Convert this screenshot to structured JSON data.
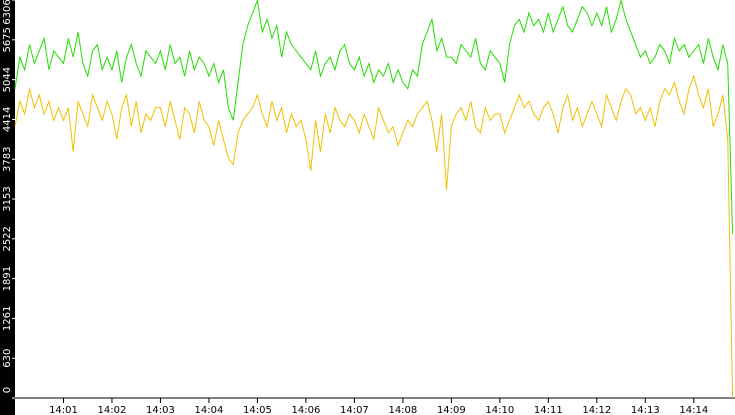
{
  "chart_data": {
    "type": "line",
    "x": [
      0,
      0.1,
      0.2,
      0.3,
      0.4,
      0.5,
      0.6,
      0.7,
      0.8,
      0.9,
      1,
      1.1,
      1.2,
      1.3,
      1.4,
      1.5,
      1.6,
      1.7,
      1.8,
      1.9,
      2,
      2.1,
      2.2,
      2.3,
      2.4,
      2.5,
      2.6,
      2.7,
      2.8,
      2.9,
      3,
      3.1,
      3.2,
      3.3,
      3.4,
      3.5,
      3.6,
      3.7,
      3.8,
      3.9,
      4,
      4.1,
      4.2,
      4.3,
      4.4,
      4.5,
      4.6,
      4.7,
      4.8,
      4.9,
      5,
      5.1,
      5.2,
      5.3,
      5.4,
      5.5,
      5.6,
      5.7,
      5.8,
      5.9,
      6,
      6.1,
      6.2,
      6.3,
      6.4,
      6.5,
      6.6,
      6.7,
      6.8,
      6.9,
      7,
      7.1,
      7.2,
      7.3,
      7.4,
      7.5,
      7.6,
      7.7,
      7.8,
      7.9,
      8,
      8.1,
      8.2,
      8.3,
      8.4,
      8.5,
      8.6,
      8.7,
      8.8,
      8.9,
      9,
      9.1,
      9.2,
      9.3,
      9.4,
      9.5,
      9.6,
      9.7,
      9.8,
      9.9,
      10,
      10.1,
      10.2,
      10.3,
      10.4,
      10.5,
      10.6,
      10.7,
      10.8,
      10.9,
      11,
      11.1,
      11.2,
      11.3,
      11.4,
      11.5,
      11.6,
      11.7,
      11.8,
      11.9,
      12,
      12.1,
      12.2,
      12.3,
      12.4,
      12.5,
      12.6,
      12.7,
      12.8,
      12.9,
      13,
      13.1,
      13.2,
      13.3,
      13.4,
      13.5,
      13.6,
      13.7,
      13.8,
      13.9,
      14,
      14.1,
      14.2,
      14.3,
      14.4,
      14.5,
      14.6,
      14.7,
      14.8
    ],
    "series": [
      {
        "color": "#22dd00",
        "values": [
          4900,
          5400,
          5200,
          5600,
          5300,
          5500,
          5700,
          5200,
          5500,
          5400,
          5300,
          5700,
          5400,
          5800,
          5300,
          5100,
          5500,
          5600,
          5200,
          5400,
          5200,
          5500,
          5000,
          5400,
          5600,
          5300,
          5100,
          5500,
          5400,
          5300,
          5500,
          5200,
          5600,
          5300,
          5400,
          5100,
          5500,
          5200,
          5400,
          5300,
          5100,
          5300,
          5000,
          5200,
          4600,
          4400,
          5000,
          5600,
          5900,
          6100,
          6300,
          5800,
          6000,
          5700,
          5900,
          5400,
          5800,
          5600,
          5500,
          5400,
          5300,
          5200,
          5500,
          5100,
          5300,
          5400,
          5200,
          5500,
          5600,
          5300,
          5200,
          5400,
          5100,
          5300,
          5000,
          5200,
          5100,
          5300,
          5000,
          5200,
          5000,
          4900,
          5200,
          5100,
          5600,
          5800,
          6000,
          5500,
          5700,
          5400,
          5400,
          5300,
          5600,
          5500,
          5400,
          5700,
          5300,
          5200,
          5500,
          5400,
          5300,
          5000,
          5600,
          5900,
          6000,
          5800,
          6100,
          5900,
          6000,
          5800,
          6100,
          5800,
          6000,
          6200,
          5900,
          5800,
          6000,
          6200,
          6100,
          5900,
          6100,
          5900,
          6200,
          5800,
          6000,
          6300,
          6000,
          5800,
          5600,
          5400,
          5500,
          5300,
          5400,
          5600,
          5500,
          5300,
          5700,
          5500,
          5600,
          5400,
          5500,
          5600,
          5300,
          5700,
          5400,
          5200,
          5600,
          5300,
          2600
        ]
      },
      {
        "color": "#f0c000",
        "values": [
          4300,
          4700,
          4500,
          4900,
          4600,
          4800,
          4500,
          4700,
          4400,
          4600,
          4400,
          4600,
          3900,
          4700,
          4500,
          4300,
          4800,
          4600,
          4400,
          4700,
          4500,
          4100,
          4600,
          4800,
          4300,
          4700,
          4200,
          4500,
          4400,
          4600,
          4600,
          4300,
          4700,
          4400,
          4100,
          4600,
          4500,
          4200,
          4700,
          4400,
          4300,
          4000,
          4400,
          4100,
          3800,
          3700,
          4200,
          4400,
          4500,
          4600,
          4800,
          4500,
          4300,
          4700,
          4400,
          4600,
          4200,
          4500,
          4300,
          4400,
          4100,
          3600,
          4400,
          3900,
          4500,
          4200,
          4600,
          4400,
          4300,
          4500,
          4400,
          4200,
          4500,
          4300,
          4100,
          4600,
          4400,
          4200,
          4300,
          4000,
          4200,
          4400,
          4300,
          4500,
          4600,
          4700,
          4400,
          3900,
          4500,
          3300,
          4300,
          4500,
          4600,
          4400,
          4700,
          4300,
          4200,
          4600,
          4400,
          4500,
          4500,
          4200,
          4400,
          4600,
          4800,
          4600,
          4700,
          4500,
          4400,
          4600,
          4700,
          4500,
          4200,
          4600,
          4800,
          4400,
          4600,
          4300,
          4500,
          4700,
          4500,
          4300,
          4800,
          4600,
          4400,
          4700,
          4900,
          4800,
          4500,
          4600,
          4400,
          4600,
          4300,
          4700,
          4900,
          4800,
          5000,
          4700,
          4500,
          4900,
          5100,
          4800,
          4600,
          4900,
          4300,
          4500,
          4800,
          4100,
          0
        ]
      }
    ],
    "xlim": [
      0,
      14.85
    ],
    "xticks": [
      {
        "value": 1,
        "label": "14:01"
      },
      {
        "value": 2,
        "label": "14:02"
      },
      {
        "value": 3,
        "label": "14:03"
      },
      {
        "value": 4,
        "label": "14:04"
      },
      {
        "value": 5,
        "label": "14:05"
      },
      {
        "value": 6,
        "label": "14:06"
      },
      {
        "value": 7,
        "label": "14:07"
      },
      {
        "value": 8,
        "label": "14:08"
      },
      {
        "value": 9,
        "label": "14:09"
      },
      {
        "value": 10,
        "label": "14:10"
      },
      {
        "value": 11,
        "label": "14:11"
      },
      {
        "value": 12,
        "label": "14:12"
      },
      {
        "value": 13,
        "label": "14:13"
      },
      {
        "value": 14,
        "label": "14:14"
      }
    ],
    "ylim": [
      0,
      6306
    ],
    "yticks": [
      0,
      630,
      1261,
      1891,
      2522,
      3153,
      3783,
      4414,
      5044,
      5675,
      6306
    ]
  }
}
